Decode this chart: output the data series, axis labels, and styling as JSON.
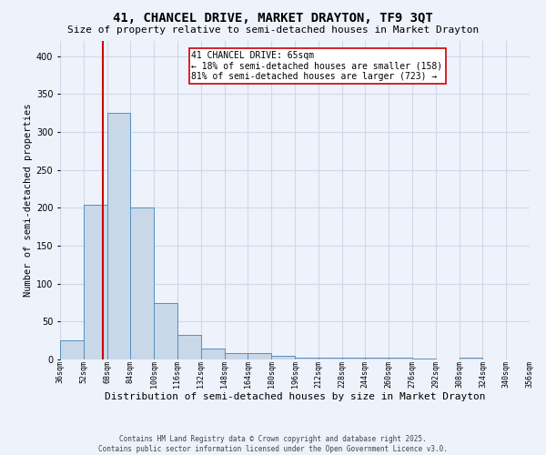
{
  "title": "41, CHANCEL DRIVE, MARKET DRAYTON, TF9 3QT",
  "subtitle": "Size of property relative to semi-detached houses in Market Drayton",
  "xlabel": "Distribution of semi-detached houses by size in Market Drayton",
  "ylabel": "Number of semi-detached properties",
  "footer_line1": "Contains HM Land Registry data © Crown copyright and database right 2025.",
  "footer_line2": "Contains public sector information licensed under the Open Government Licence v3.0.",
  "annotation_title": "41 CHANCEL DRIVE: 65sqm",
  "annotation_line1": "← 18% of semi-detached houses are smaller (158)",
  "annotation_line2": "81% of semi-detached houses are larger (723) →",
  "property_size": 65,
  "bin_edges": [
    36,
    52,
    68,
    84,
    100,
    116,
    132,
    148,
    164,
    180,
    196,
    212,
    228,
    244,
    260,
    276,
    292,
    308,
    324,
    340,
    356
  ],
  "bin_counts": [
    25,
    204,
    325,
    200,
    75,
    32,
    15,
    8,
    9,
    5,
    3,
    3,
    3,
    3,
    2,
    1,
    0,
    3,
    0,
    0,
    3
  ],
  "bar_color": "#c8d8e8",
  "bar_edge_color": "#5590c0",
  "redline_color": "#cc0000",
  "grid_color": "#d0d8e8",
  "background_color": "#eef2fb",
  "annotation_box_color": "#ffffff",
  "annotation_box_edge": "#cc0000",
  "ylim": [
    0,
    420
  ],
  "yticks": [
    0,
    50,
    100,
    150,
    200,
    250,
    300,
    350,
    400
  ],
  "title_fontsize": 10,
  "subtitle_fontsize": 8,
  "ylabel_fontsize": 7.5,
  "xlabel_fontsize": 8,
  "xtick_fontsize": 6,
  "ytick_fontsize": 7,
  "annotation_fontsize": 7,
  "footer_fontsize": 5.5
}
